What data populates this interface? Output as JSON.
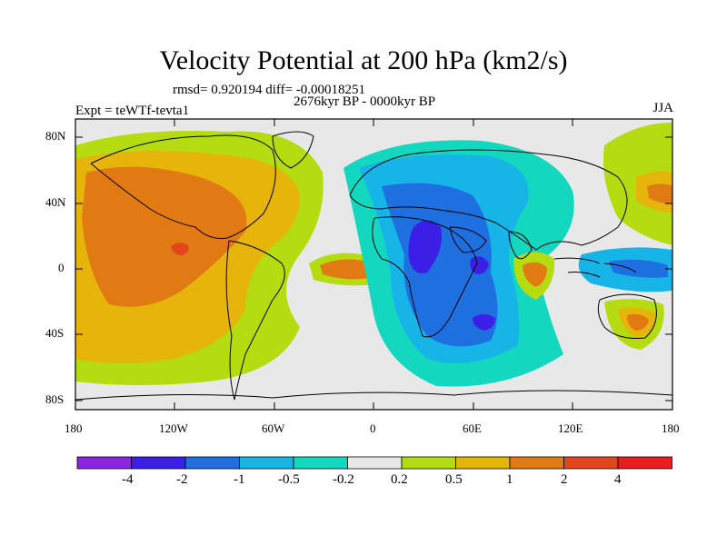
{
  "title": "Velocity Potential at 200 hPa (km2/s)",
  "stats": "rmsd= 0.920194 diff= -0.00018251",
  "period": "2676kyr BP - 0000kyr BP",
  "experiment": "Expt = teWTf-tevta1",
  "season": "JJA",
  "lat_labels": [
    "80N",
    "40N",
    "0",
    "40S",
    "80S"
  ],
  "lon_labels": [
    "180",
    "120W",
    "60W",
    "0",
    "60E",
    "120E",
    "180"
  ],
  "colorbar": {
    "colors": [
      "#8e23e6",
      "#3c1fe6",
      "#1e6fe0",
      "#17b4e8",
      "#14d7c0",
      "#e8e8e8",
      "#b4dc10",
      "#e6b40a",
      "#e27a14",
      "#e0471a",
      "#e81e1e"
    ],
    "labels": [
      "-4",
      "-2",
      "-1",
      "-0.5",
      "-0.2",
      "0.2",
      "0.5",
      "1",
      "2",
      "4"
    ]
  }
}
